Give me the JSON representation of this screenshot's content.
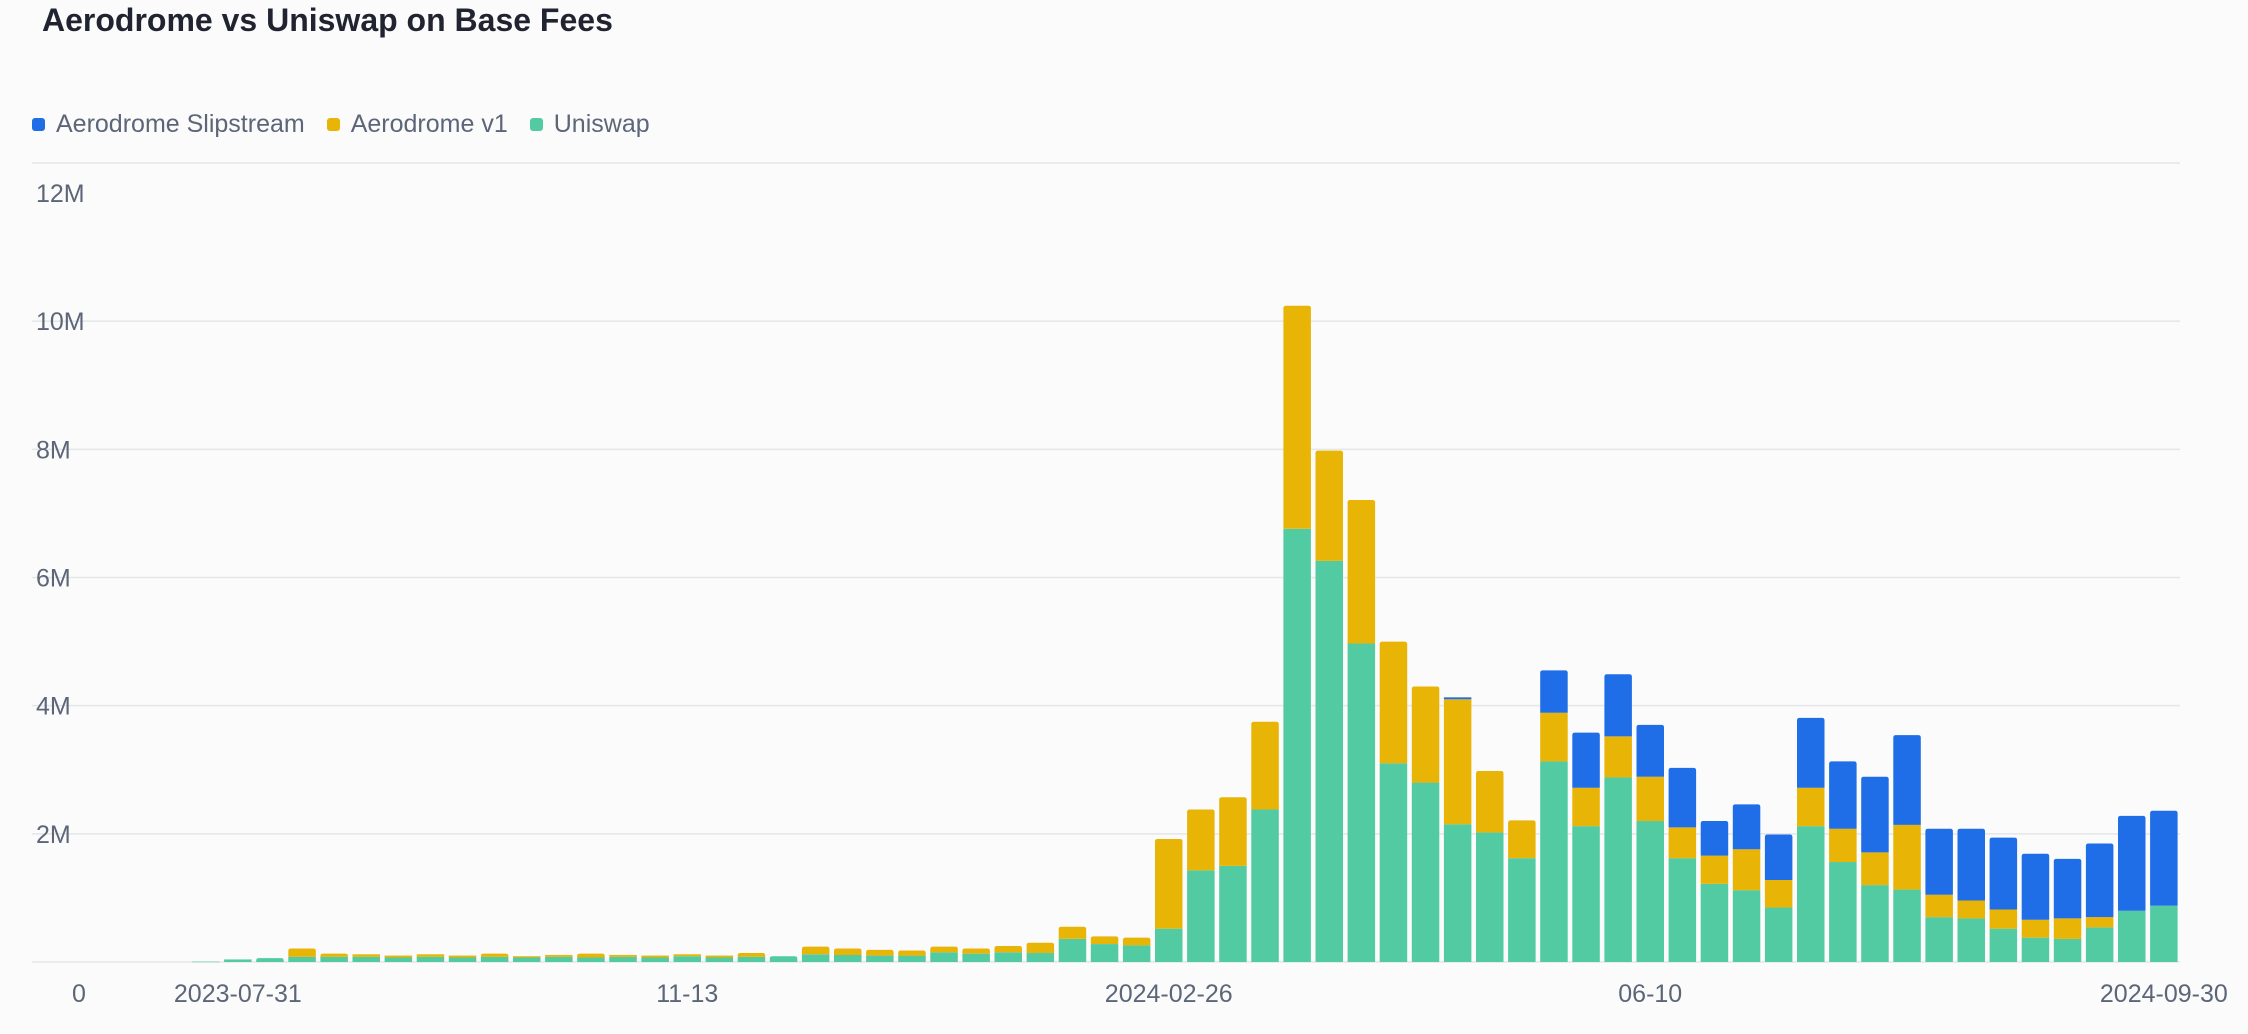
{
  "chart_data": {
    "type": "bar",
    "stacked": true,
    "title": "Aerodrome vs Uniswap on Base Fees",
    "xlabel": "",
    "ylabel": "",
    "ylim": [
      0,
      12000000
    ],
    "yticks": [
      0,
      2000000,
      4000000,
      6000000,
      8000000,
      10000000,
      12000000
    ],
    "ytick_labels": [
      "0",
      "2M",
      "4M",
      "6M",
      "8M",
      "10M",
      "12M"
    ],
    "grid": true,
    "legend_position": "top-left",
    "xtick_labels": [
      {
        "index": 1,
        "label": "2023-07-31"
      },
      {
        "index": 15,
        "label": "11-13"
      },
      {
        "index": 30,
        "label": "2024-02-26"
      },
      {
        "index": 45,
        "label": "06-10"
      },
      {
        "index": 61,
        "label": "2024-09-30"
      }
    ],
    "series": [
      {
        "name": "Uniswap",
        "color": "#52cba3",
        "values": [
          5000,
          40000,
          60000,
          80000,
          80000,
          80000,
          70000,
          80000,
          70000,
          80000,
          70000,
          80000,
          70000,
          80000,
          70000,
          90000,
          70000,
          80000,
          90000,
          120000,
          110000,
          100000,
          100000,
          150000,
          130000,
          150000,
          140000,
          360000,
          280000,
          260000,
          520000,
          1430000,
          1500000,
          2380000,
          6760000,
          6260000,
          4970000,
          3100000,
          2800000,
          2150000,
          2020000,
          1620000,
          3130000,
          2120000,
          2880000,
          2200000,
          1620000,
          1220000,
          1120000,
          850000,
          2120000,
          1560000,
          1200000,
          1130000,
          700000,
          680000,
          520000,
          380000,
          360000,
          540000,
          800000,
          880000
        ]
      },
      {
        "name": "Aerodrome v1",
        "color": "#e8b406",
        "values": [
          0,
          0,
          0,
          130000,
          50000,
          40000,
          30000,
          40000,
          30000,
          50000,
          20000,
          30000,
          60000,
          30000,
          30000,
          30000,
          30000,
          60000,
          0,
          120000,
          100000,
          90000,
          80000,
          90000,
          80000,
          100000,
          160000,
          190000,
          120000,
          120000,
          1400000,
          950000,
          1070000,
          1370000,
          3480000,
          1720000,
          2240000,
          1900000,
          1500000,
          1950000,
          960000,
          590000,
          760000,
          600000,
          640000,
          690000,
          480000,
          440000,
          640000,
          430000,
          600000,
          520000,
          510000,
          1010000,
          350000,
          280000,
          300000,
          280000,
          320000,
          160000,
          0,
          0
        ]
      },
      {
        "name": "Aerodrome Slipstream",
        "color": "#1f6ee8",
        "values": [
          0,
          0,
          0,
          0,
          0,
          0,
          0,
          0,
          0,
          0,
          0,
          0,
          0,
          0,
          0,
          0,
          0,
          0,
          0,
          0,
          0,
          0,
          0,
          0,
          0,
          0,
          0,
          0,
          0,
          0,
          0,
          0,
          0,
          0,
          0,
          0,
          0,
          0,
          0,
          30000,
          0,
          0,
          660000,
          860000,
          970000,
          810000,
          930000,
          540000,
          700000,
          710000,
          1090000,
          1050000,
          1180000,
          1400000,
          1030000,
          1120000,
          1120000,
          1030000,
          930000,
          1150000,
          1480000,
          1480000
        ]
      }
    ]
  },
  "legend": [
    {
      "label": "Aerodrome Slipstream",
      "color": "#1f6ee8"
    },
    {
      "label": "Aerodrome v1",
      "color": "#e8b406"
    },
    {
      "label": "Uniswap",
      "color": "#52cba3"
    }
  ]
}
